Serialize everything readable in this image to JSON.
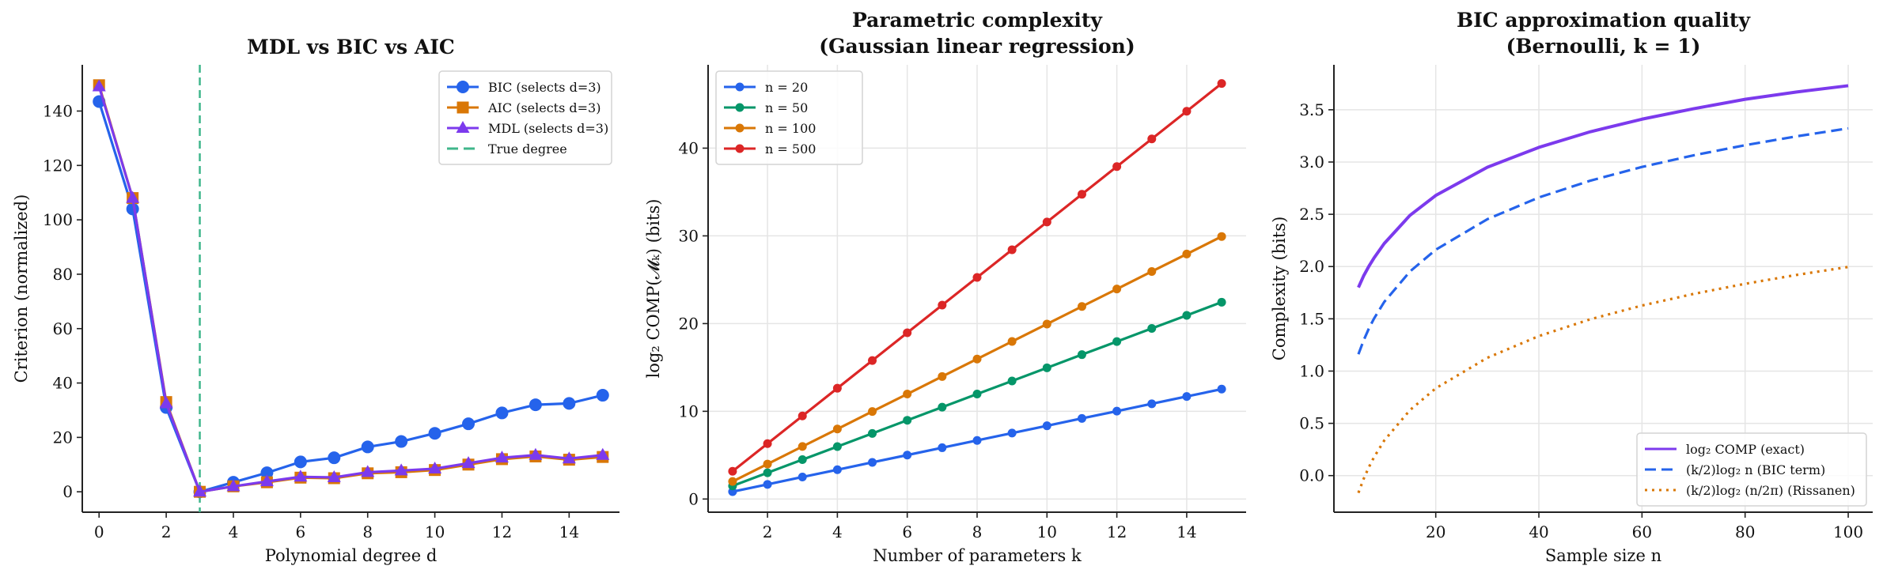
{
  "chart_data": [
    {
      "type": "line",
      "title": [
        "MDL vs BIC vs AIC"
      ],
      "xlabel": "Polynomial degree d",
      "ylabel": "Criterion (normalized)",
      "xlim": [
        -0.5,
        15.5
      ],
      "ylim": [
        -7.5,
        157
      ],
      "xticks": [
        0,
        2,
        4,
        6,
        8,
        10,
        12,
        14
      ],
      "yticks": [
        0,
        20,
        40,
        60,
        80,
        100,
        120,
        140
      ],
      "grid": false,
      "legend_position": "top-right",
      "x": [
        0,
        1,
        2,
        3,
        4,
        5,
        6,
        7,
        8,
        9,
        10,
        11,
        12,
        13,
        14,
        15
      ],
      "series": [
        {
          "name": "BIC (selects d=3)",
          "color": "#2563eb",
          "marker": "circle",
          "style": "solid",
          "values": [
            143.5,
            104,
            31,
            0,
            3.5,
            7,
            11,
            12.5,
            16.5,
            18.5,
            21.5,
            25,
            29,
            32,
            32.5,
            35.5
          ]
        },
        {
          "name": "AIC (selects d=3)",
          "color": "#d97706",
          "marker": "square",
          "style": "solid",
          "values": [
            149.5,
            108,
            33,
            0,
            2,
            3.5,
            5.2,
            5,
            6.8,
            7.2,
            8,
            10,
            12,
            13,
            11.8,
            12.8
          ]
        },
        {
          "name": "MDL (selects d=3)",
          "color": "#7c3aed",
          "marker": "triangle",
          "style": "solid",
          "values": [
            149,
            108,
            32.5,
            0,
            2,
            3.8,
            5.5,
            5.3,
            7.2,
            7.8,
            8.5,
            10.5,
            12.5,
            13.5,
            12.2,
            13.5
          ]
        }
      ],
      "vlines": [
        {
          "name": "True degree",
          "x": 3,
          "color": "#3fb68b",
          "style": "dashed"
        }
      ]
    },
    {
      "type": "line",
      "title": [
        "Parametric complexity",
        "(Gaussian linear regression)"
      ],
      "xlabel": "Number of parameters k",
      "ylabel": "log₂ COMP(𝓜ₖ) (bits)",
      "xlim": [
        0.3,
        15.7
      ],
      "ylim": [
        -1.5,
        49.5
      ],
      "xticks": [
        2,
        4,
        6,
        8,
        10,
        12,
        14
      ],
      "yticks": [
        0,
        10,
        20,
        30,
        40
      ],
      "grid": true,
      "legend_position": "top-left",
      "x": [
        1,
        2,
        3,
        4,
        5,
        6,
        7,
        8,
        9,
        10,
        11,
        12,
        13,
        14,
        15
      ],
      "series": [
        {
          "name": "n = 20",
          "color": "#2563eb",
          "marker": "dot",
          "style": "solid",
          "values": [
            0.84,
            1.67,
            2.51,
            3.34,
            4.18,
            5.01,
            5.85,
            6.68,
            7.52,
            8.35,
            9.19,
            10.02,
            10.86,
            11.69,
            12.53
          ]
        },
        {
          "name": "n = 50",
          "color": "#059669",
          "marker": "dot",
          "style": "solid",
          "values": [
            1.5,
            2.99,
            4.49,
            5.98,
            7.48,
            8.98,
            10.47,
            11.97,
            13.46,
            14.96,
            16.46,
            17.95,
            19.45,
            20.94,
            22.44
          ]
        },
        {
          "name": "n = 100",
          "color": "#d97706",
          "marker": "dot",
          "style": "solid",
          "values": [
            2.0,
            3.99,
            5.99,
            7.98,
            9.98,
            11.97,
            13.97,
            15.96,
            17.96,
            19.95,
            21.95,
            23.94,
            25.94,
            27.93,
            29.93
          ]
        },
        {
          "name": "n = 500",
          "color": "#dc2626",
          "marker": "dot",
          "style": "solid",
          "values": [
            3.16,
            6.32,
            9.47,
            12.63,
            15.79,
            18.95,
            22.11,
            25.26,
            28.42,
            31.58,
            34.74,
            37.9,
            41.05,
            44.21,
            47.37
          ]
        }
      ]
    },
    {
      "type": "line",
      "title": [
        "BIC approximation quality",
        "(Bernoulli, k = 1)"
      ],
      "xlabel": "Sample size n",
      "ylabel": "Complexity (bits)",
      "xlim": [
        0.25,
        104.75
      ],
      "ylim": [
        -0.35,
        3.93
      ],
      "xticks": [
        20,
        40,
        60,
        80,
        100
      ],
      "yticks": [
        0.0,
        0.5,
        1.0,
        1.5,
        2.0,
        2.5,
        3.0,
        3.5
      ],
      "grid": true,
      "legend_position": "bottom-right",
      "x": [
        5,
        6,
        7,
        8,
        10,
        15,
        20,
        30,
        40,
        50,
        60,
        70,
        80,
        90,
        100
      ],
      "series": [
        {
          "name": "log₂ COMP (exact)",
          "color": "#7c3aed",
          "marker": "none",
          "style": "solid",
          "values": [
            1.8,
            1.91,
            2.0,
            2.08,
            2.22,
            2.49,
            2.68,
            2.95,
            3.14,
            3.29,
            3.41,
            3.51,
            3.6,
            3.67,
            3.73
          ]
        },
        {
          "name": "(k/2)log₂ n (BIC term)",
          "color": "#2563eb",
          "marker": "none",
          "style": "dashed",
          "values": [
            1.161,
            1.292,
            1.404,
            1.5,
            1.661,
            1.953,
            2.161,
            2.453,
            2.661,
            2.822,
            2.953,
            3.064,
            3.161,
            3.246,
            3.322
          ]
        },
        {
          "name": "(k/2)log₂ (n/2π) (Rissanen)",
          "color": "#d97706",
          "marker": "none",
          "style": "dotted",
          "values": [
            -0.165,
            -0.033,
            0.078,
            0.174,
            0.335,
            0.627,
            0.835,
            1.127,
            1.335,
            1.496,
            1.627,
            1.738,
            1.835,
            1.92,
            1.996
          ]
        }
      ]
    }
  ]
}
